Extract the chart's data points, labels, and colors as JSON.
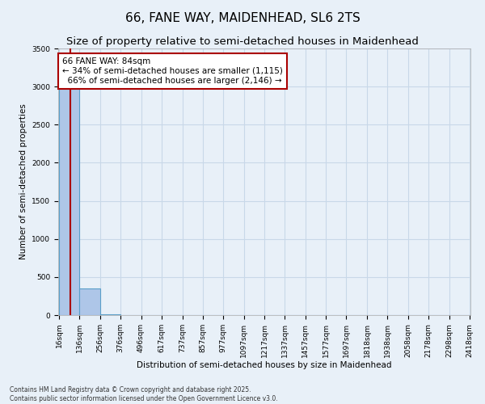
{
  "title": "66, FANE WAY, MAIDENHEAD, SL6 2TS",
  "subtitle": "Size of property relative to semi-detached houses in Maidenhead",
  "xlabel": "Distribution of semi-detached houses by size in Maidenhead",
  "ylabel": "Number of semi-detached properties",
  "property_size": 84,
  "property_label": "66 FANE WAY: 84sqm",
  "smaller_pct": 34,
  "smaller_count": 1115,
  "larger_pct": 66,
  "larger_count": 2146,
  "bin_edges": [
    16,
    136,
    256,
    376,
    496,
    617,
    737,
    857,
    977,
    1097,
    1217,
    1337,
    1457,
    1577,
    1697,
    1818,
    1938,
    2058,
    2178,
    2298,
    2418
  ],
  "bar_heights": [
    3400,
    350,
    15,
    5,
    3,
    2,
    1,
    1,
    0,
    1,
    0,
    0,
    1,
    0,
    0,
    0,
    0,
    0,
    0,
    1
  ],
  "bar_color": "#aec6e8",
  "bar_edge_color": "#5a9fc8",
  "line_color": "#aa0000",
  "annotation_border_color": "#aa0000",
  "annotation_bg_color": "#ffffff",
  "grid_color": "#c8d8e8",
  "background_color": "#e8f0f8",
  "ylim": [
    0,
    3500
  ],
  "yticks": [
    0,
    500,
    1000,
    1500,
    2000,
    2500,
    3000,
    3500
  ],
  "footnote": "Contains HM Land Registry data © Crown copyright and database right 2025.\nContains public sector information licensed under the Open Government Licence v3.0.",
  "title_fontsize": 11,
  "subtitle_fontsize": 9.5,
  "label_fontsize": 7.5,
  "tick_fontsize": 6.5,
  "annotation_fontsize": 7.5
}
